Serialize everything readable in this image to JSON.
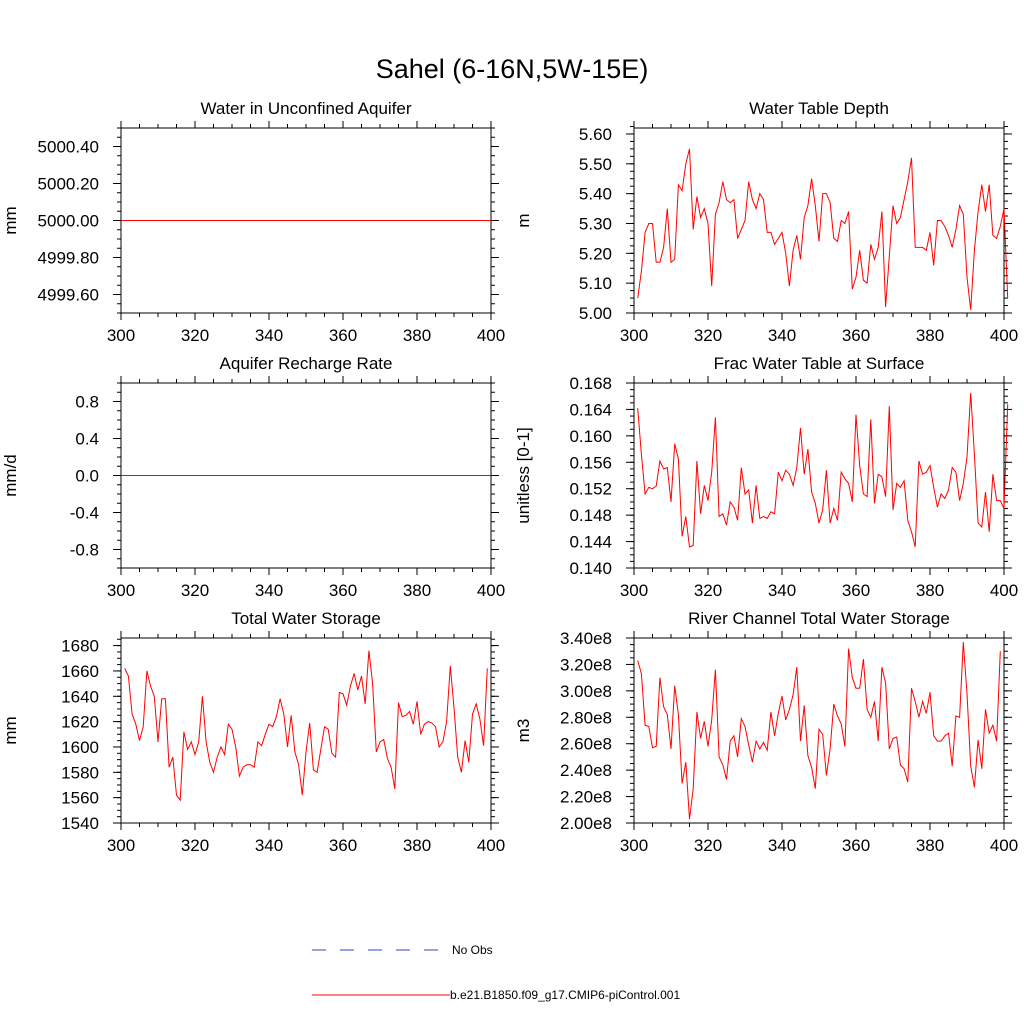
{
  "title": "Sahel (6-16N,5W-15E)",
  "legend": {
    "entries": [
      {
        "label": "No Obs",
        "color": "#3344cc",
        "dash": "dashed"
      },
      {
        "label": "b.e21.B1850.f09_g17.CMIP6-piControl.001",
        "color": "#ff0000",
        "dash": "solid"
      }
    ]
  },
  "chart_data": [
    {
      "type": "line",
      "title": "Water in Unconfined Aquifer",
      "ylabel": "mm",
      "xlim": [
        300,
        400
      ],
      "ylim": [
        4999.5,
        5000.5
      ],
      "xticks": [
        300,
        320,
        340,
        360,
        380,
        400
      ],
      "xtick_labels": [
        "300",
        "320",
        "340",
        "360",
        "380",
        "400"
      ],
      "yticks": [
        4999.6,
        4999.8,
        5000.0,
        5000.2,
        5000.4
      ],
      "ytick_labels": [
        "4999.60",
        "4999.80",
        "5000.00",
        "5000.20",
        "5000.40"
      ],
      "ytick_minor_step": 0.05,
      "series": [
        {
          "name": "b.e21.B1850.f09_g17.CMIP6-piControl.001",
          "color": "#ff0000",
          "constant": 5000.0
        }
      ]
    },
    {
      "type": "line",
      "title": "Water Table Depth",
      "ylabel": "m",
      "xlim": [
        300,
        400
      ],
      "ylim": [
        5.0,
        5.62
      ],
      "xticks": [
        300,
        320,
        340,
        360,
        380,
        400
      ],
      "xtick_labels": [
        "300",
        "320",
        "340",
        "360",
        "380",
        "400"
      ],
      "yticks": [
        5.0,
        5.1,
        5.2,
        5.3,
        5.4,
        5.5,
        5.6
      ],
      "ytick_labels": [
        "5.00",
        "5.10",
        "5.20",
        "5.30",
        "5.40",
        "5.50",
        "5.60"
      ],
      "ytick_minor_step": 0.025,
      "series": [
        {
          "name": "b.e21.B1850.f09_g17.CMIP6-piControl.001",
          "color": "#ff0000",
          "x_start": 301,
          "values": [
            5.05,
            5.14,
            5.27,
            5.3,
            5.3,
            5.17,
            5.17,
            5.22,
            5.35,
            5.17,
            5.18,
            5.43,
            5.41,
            5.5,
            5.55,
            5.28,
            5.39,
            5.32,
            5.35,
            5.3,
            5.09,
            5.33,
            5.37,
            5.44,
            5.38,
            5.37,
            5.38,
            5.25,
            5.28,
            5.31,
            5.44,
            5.38,
            5.35,
            5.4,
            5.38,
            5.27,
            5.27,
            5.23,
            5.25,
            5.27,
            5.2,
            5.09,
            5.21,
            5.26,
            5.18,
            5.32,
            5.36,
            5.45,
            5.36,
            5.24,
            5.4,
            5.4,
            5.37,
            5.25,
            5.24,
            5.31,
            5.3,
            5.34,
            5.08,
            5.12,
            5.21,
            5.11,
            5.1,
            5.23,
            5.18,
            5.22,
            5.34,
            5.02,
            5.19,
            5.36,
            5.3,
            5.32,
            5.38,
            5.44,
            5.52,
            5.22,
            5.22,
            5.22,
            5.21,
            5.27,
            5.16,
            5.31,
            5.31,
            5.29,
            5.26,
            5.22,
            5.28,
            5.36,
            5.33,
            5.12,
            5.01,
            5.21,
            5.34,
            5.43,
            5.34,
            5.43,
            5.26,
            5.25,
            5.29,
            5.35,
            5.05
          ]
        }
      ]
    },
    {
      "type": "line",
      "title": "Aquifer Recharge Rate",
      "ylabel": "mm/d",
      "xlim": [
        300,
        400
      ],
      "ylim": [
        -1.0,
        1.0
      ],
      "xticks": [
        300,
        320,
        340,
        360,
        380,
        400
      ],
      "xtick_labels": [
        "300",
        "320",
        "340",
        "360",
        "380",
        "400"
      ],
      "yticks": [
        -0.8,
        -0.4,
        0.0,
        0.4,
        0.8
      ],
      "ytick_labels": [
        "-0.8",
        "-0.4",
        "0.0",
        "0.4",
        "0.8"
      ],
      "ytick_minor_step": 0.1,
      "series": [
        {
          "name": "b.e21.B1850.f09_g17.CMIP6-piControl.001",
          "color": "#ff0000",
          "constant": 0.0
        }
      ]
    },
    {
      "type": "line",
      "title": "Frac Water Table at Surface",
      "ylabel": "unitless [0-1]",
      "xlim": [
        300,
        400
      ],
      "ylim": [
        0.14,
        0.168
      ],
      "xticks": [
        300,
        320,
        340,
        360,
        380,
        400
      ],
      "xtick_labels": [
        "300",
        "320",
        "340",
        "360",
        "380",
        "400"
      ],
      "yticks": [
        0.14,
        0.144,
        0.148,
        0.152,
        0.156,
        0.16,
        0.164,
        0.168
      ],
      "ytick_labels": [
        "0.140",
        "0.144",
        "0.148",
        "0.152",
        "0.156",
        "0.160",
        "0.164",
        "0.168"
      ],
      "ytick_minor_step": 0.001,
      "series": [
        {
          "name": "b.e21.B1850.f09_g17.CMIP6-piControl.001",
          "color": "#ff0000",
          "x_start": 301,
          "values": [
            0.1642,
            0.1572,
            0.1512,
            0.1522,
            0.152,
            0.1524,
            0.1562,
            0.155,
            0.1552,
            0.15,
            0.1588,
            0.1565,
            0.1448,
            0.1478,
            0.1432,
            0.1434,
            0.1562,
            0.1482,
            0.1525,
            0.1502,
            0.1545,
            0.1628,
            0.1478,
            0.1482,
            0.1465,
            0.15,
            0.1492,
            0.1472,
            0.1552,
            0.1512,
            0.1518,
            0.1468,
            0.1525,
            0.1475,
            0.1478,
            0.1475,
            0.1485,
            0.1482,
            0.1545,
            0.1532,
            0.1548,
            0.1542,
            0.1525,
            0.1552,
            0.1612,
            0.1542,
            0.158,
            0.1515,
            0.1498,
            0.1468,
            0.1488,
            0.1548,
            0.1468,
            0.149,
            0.1472,
            0.1545,
            0.1535,
            0.1528,
            0.15,
            0.1632,
            0.1555,
            0.1512,
            0.1508,
            0.1625,
            0.1498,
            0.1542,
            0.1538,
            0.1508,
            0.1645,
            0.1488,
            0.1528,
            0.1522,
            0.1532,
            0.1472,
            0.1455,
            0.1432,
            0.1562,
            0.1542,
            0.1545,
            0.1555,
            0.1522,
            0.1492,
            0.1512,
            0.1505,
            0.1518,
            0.1552,
            0.1545,
            0.1502,
            0.1528,
            0.1568,
            0.1665,
            0.1572,
            0.1468,
            0.1462,
            0.1515,
            0.1455,
            0.1542,
            0.1502,
            0.1502,
            0.149,
            0.1648
          ]
        }
      ]
    },
    {
      "type": "line",
      "title": "Total Water Storage",
      "ylabel": "mm",
      "xlim": [
        300,
        400
      ],
      "ylim": [
        1540,
        1686
      ],
      "xticks": [
        300,
        320,
        340,
        360,
        380,
        400
      ],
      "xtick_labels": [
        "300",
        "320",
        "340",
        "360",
        "380",
        "400"
      ],
      "yticks": [
        1540,
        1560,
        1580,
        1600,
        1620,
        1640,
        1660,
        1680
      ],
      "ytick_labels": [
        "1540",
        "1560",
        "1580",
        "1600",
        "1620",
        "1640",
        "1660",
        "1680"
      ],
      "ytick_minor_step": 5,
      "series": [
        {
          "name": "b.e21.B1850.f09_g17.CMIP6-piControl.001",
          "color": "#ff0000",
          "x_start": 301,
          "values": [
            1662,
            1656,
            1626,
            1618,
            1605,
            1616,
            1660,
            1648,
            1640,
            1604,
            1638,
            1638,
            1584,
            1592,
            1562,
            1558,
            1612,
            1598,
            1604,
            1594,
            1604,
            1640,
            1604,
            1588,
            1580,
            1592,
            1600,
            1594,
            1618,
            1614,
            1600,
            1577,
            1584,
            1586,
            1586,
            1584,
            1604,
            1601,
            1610,
            1618,
            1616,
            1624,
            1638,
            1626,
            1600,
            1625,
            1596,
            1586,
            1562,
            1596,
            1619,
            1582,
            1580,
            1598,
            1616,
            1614,
            1595,
            1592,
            1643,
            1642,
            1633,
            1648,
            1658,
            1645,
            1656,
            1634,
            1676,
            1650,
            1596,
            1604,
            1606,
            1591,
            1584,
            1567,
            1635,
            1624,
            1625,
            1628,
            1618,
            1636,
            1610,
            1618,
            1620,
            1619,
            1616,
            1600,
            1604,
            1620,
            1664,
            1631,
            1592,
            1580,
            1605,
            1588,
            1626,
            1634,
            1622,
            1601,
            1662
          ]
        }
      ]
    },
    {
      "type": "line",
      "title": "River Channel Total Water Storage",
      "ylabel": "m3",
      "xlim": [
        300,
        400
      ],
      "ylim": [
        200000000,
        340000000
      ],
      "xticks": [
        300,
        320,
        340,
        360,
        380,
        400
      ],
      "xtick_labels": [
        "300",
        "320",
        "340",
        "360",
        "380",
        "400"
      ],
      "yticks": [
        200000000,
        220000000,
        240000000,
        260000000,
        280000000,
        300000000,
        320000000,
        340000000
      ],
      "ytick_labels": [
        "2.00e8",
        "2.20e8",
        "2.40e8",
        "2.60e8",
        "2.80e8",
        "3.00e8",
        "3.20e8",
        "3.40e8"
      ],
      "ytick_minor_step": 5000000,
      "series": [
        {
          "name": "b.e21.B1850.f09_g17.CMIP6-piControl.001",
          "color": "#ff0000",
          "x_start": 301,
          "values": [
            323000000,
            313000000,
            274000000,
            273000000,
            257000000,
            258000000,
            310000000,
            288000000,
            282000000,
            256000000,
            304000000,
            282000000,
            230000000,
            246000000,
            203000000,
            226000000,
            284000000,
            264000000,
            277000000,
            258000000,
            278000000,
            316000000,
            250000000,
            244000000,
            233000000,
            262000000,
            266000000,
            250000000,
            279000000,
            273000000,
            259000000,
            246000000,
            262000000,
            256000000,
            261000000,
            255000000,
            284000000,
            266000000,
            283000000,
            296000000,
            278000000,
            286000000,
            297000000,
            318000000,
            262000000,
            289000000,
            251000000,
            242000000,
            226000000,
            271000000,
            267000000,
            236000000,
            256000000,
            290000000,
            281000000,
            275000000,
            258000000,
            332000000,
            310000000,
            302000000,
            302000000,
            324000000,
            286000000,
            280000000,
            292000000,
            262000000,
            318000000,
            306000000,
            256000000,
            264000000,
            265000000,
            244000000,
            241000000,
            231000000,
            302000000,
            292000000,
            280000000,
            292000000,
            283000000,
            299000000,
            266000000,
            262000000,
            262000000,
            266000000,
            268000000,
            243000000,
            281000000,
            280000000,
            337000000,
            298000000,
            243000000,
            227000000,
            263000000,
            241000000,
            286000000,
            268000000,
            274000000,
            262000000,
            330000000
          ]
        }
      ]
    }
  ]
}
